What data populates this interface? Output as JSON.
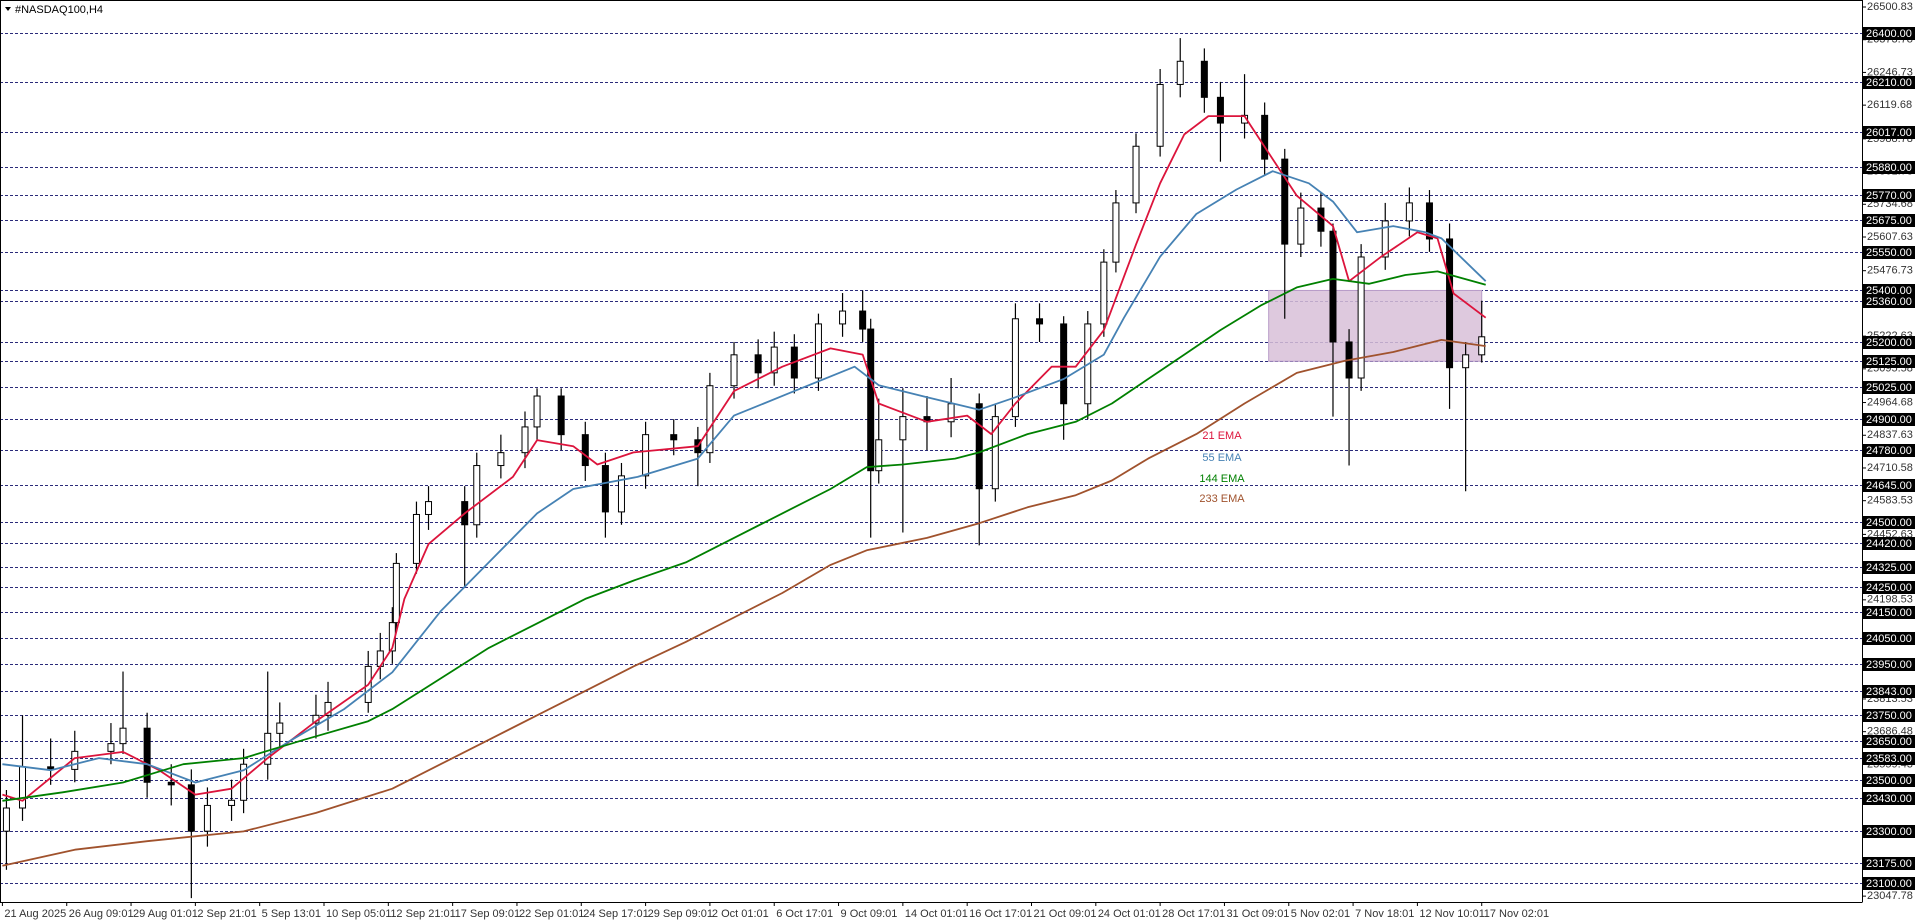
{
  "chart_data": {
    "type": "candlestick",
    "title": "#NASDAQ100,H4",
    "xlim": [
      -0.6,
      462.6
    ],
    "ylim": [
      23025,
      26528
    ],
    "xticks": [
      {
        "value": 0,
        "label": "21 Aug 2025"
      },
      {
        "value": 16,
        "label": "26 Aug 09:01"
      },
      {
        "value": 32,
        "label": "29 Aug 01:01"
      },
      {
        "value": 48,
        "label": "2 Sep 21:01"
      },
      {
        "value": 64,
        "label": "5 Sep 13:01"
      },
      {
        "value": 80,
        "label": "10 Sep 05:01"
      },
      {
        "value": 96,
        "label": "12 Sep 21:01"
      },
      {
        "value": 112,
        "label": "17 Sep 09:01"
      },
      {
        "value": 128,
        "label": "22 Sep 01:01"
      },
      {
        "value": 144,
        "label": "24 Sep 17:01"
      },
      {
        "value": 160,
        "label": "29 Sep 09:01"
      },
      {
        "value": 176,
        "label": "2 Oct 01:01"
      },
      {
        "value": 192,
        "label": "6 Oct 17:01"
      },
      {
        "value": 208,
        "label": "9 Oct 09:01"
      },
      {
        "value": 224,
        "label": "14 Oct 01:01"
      },
      {
        "value": 240,
        "label": "16 Oct 17:01"
      },
      {
        "value": 256,
        "label": "21 Oct 09:01"
      },
      {
        "value": 272,
        "label": "24 Oct 01:01"
      },
      {
        "value": 288,
        "label": "28 Oct 17:01"
      },
      {
        "value": 304,
        "label": "31 Oct 09:01"
      },
      {
        "value": 320,
        "label": "5 Nov 02:01"
      },
      {
        "value": 336,
        "label": "7 Nov 18:01"
      },
      {
        "value": 352,
        "label": "12 Nov 10:01"
      },
      {
        "value": 368,
        "label": "17 Nov 02:01"
      }
    ],
    "yticks": [
      26500.83,
      26373.78,
      26246.73,
      26119.68,
      25988.78,
      25861.73,
      25734.68,
      25607.63,
      25476.73,
      25222.63,
      25095.58,
      24964.68,
      24837.63,
      24710.58,
      24583.53,
      24452.63,
      24198.53,
      23813.53,
      23686.48,
      23559.43,
      23047.78
    ],
    "levels": [
      {
        "value": 26400,
        "label": "26400.00"
      },
      {
        "value": 26210,
        "label": "26210.00"
      },
      {
        "value": 26017,
        "label": "26017.00"
      },
      {
        "value": 25880,
        "label": "25880.00"
      },
      {
        "value": 25770,
        "label": "25770.00"
      },
      {
        "value": 25675,
        "label": "25675.00"
      },
      {
        "value": 25550,
        "label": "25550.00"
      },
      {
        "value": 25400,
        "label": "25400.00"
      },
      {
        "value": 25360,
        "label": "25360.00"
      },
      {
        "value": 25200,
        "label": "25200.00"
      },
      {
        "value": 25125,
        "label": "25125.00"
      },
      {
        "value": 25025,
        "label": "25025.00"
      },
      {
        "value": 24900,
        "label": "24900.00"
      },
      {
        "value": 24780,
        "label": "24780.00"
      },
      {
        "value": 24645,
        "label": "24645.00"
      },
      {
        "value": 24500,
        "label": "24500.00"
      },
      {
        "value": 24420,
        "label": "24420.00"
      },
      {
        "value": 24325,
        "label": "24325.00"
      },
      {
        "value": 24250,
        "label": "24250.00"
      },
      {
        "value": 24150,
        "label": "24150.00"
      },
      {
        "value": 24050,
        "label": "24050.00"
      },
      {
        "value": 23950,
        "label": "23950.00"
      },
      {
        "value": 23843,
        "label": "23843.00"
      },
      {
        "value": 23750,
        "label": "23750.00"
      },
      {
        "value": 23650,
        "label": "23650.00"
      },
      {
        "value": 23583,
        "label": "23583.00"
      },
      {
        "value": 23500,
        "label": "23500.00"
      },
      {
        "value": 23430,
        "label": "23430.00"
      },
      {
        "value": 23300,
        "label": "23300.00"
      },
      {
        "value": 23175,
        "label": "23175.00"
      },
      {
        "value": 23100,
        "label": "23100.00"
      }
    ],
    "level_color": "#2b2b7a",
    "zone": {
      "x": [
        315,
        368
      ],
      "y": [
        25125,
        25400
      ],
      "color": "#d8bfd8"
    },
    "candle_color": "#000000",
    "x": [
      1,
      5,
      12,
      18,
      27,
      30,
      36,
      42,
      47,
      51,
      57,
      60,
      66,
      69,
      78,
      81,
      91,
      94,
      97,
      98,
      103,
      106,
      115,
      118,
      124,
      130,
      133,
      139,
      145,
      150,
      154,
      160,
      167,
      173,
      176,
      182,
      188,
      192,
      197,
      203,
      209,
      214,
      216,
      218,
      224,
      230,
      236,
      243,
      247,
      252,
      258,
      264,
      270,
      274,
      277,
      282,
      288,
      293,
      299,
      303,
      309,
      314,
      319,
      323,
      328,
      331,
      335,
      338,
      344,
      350,
      355,
      360,
      364,
      368
    ],
    "open": [
      23300,
      23390,
      23550,
      23540,
      23610,
      23640,
      23700,
      23490,
      23480,
      23300,
      23400,
      23420,
      23560,
      23680,
      23720,
      23750,
      23800,
      23940,
      24000,
      24110,
      24340,
      24530,
      24580,
      24490,
      24720,
      24770,
      24870,
      24990,
      24840,
      24720,
      24540,
      24680,
      24840,
      24820,
      24770,
      25030,
      25150,
      25080,
      25180,
      25060,
      25270,
      25320,
      25250,
      24700,
      24820,
      24910,
      24890,
      24960,
      24630,
      24910,
      25290,
      25270,
      24960,
      25270,
      25510,
      25740,
      25960,
      26200,
      26290,
      26150,
      26050,
      26080,
      25910,
      25580,
      25720,
      25630,
      25200,
      25060,
      25530,
      25670,
      25740,
      25600,
      25100,
      25150
    ],
    "high": [
      23460,
      23750,
      23660,
      23690,
      23720,
      23920,
      23760,
      23560,
      23540,
      23470,
      23500,
      23620,
      23920,
      23800,
      23830,
      23880,
      24000,
      24070,
      24170,
      24380,
      24580,
      24640,
      24640,
      24770,
      24840,
      24930,
      25020,
      25020,
      24890,
      24770,
      24730,
      24890,
      24900,
      24870,
      25080,
      25200,
      25210,
      25240,
      25230,
      25310,
      25390,
      25400,
      25290,
      24980,
      25020,
      24990,
      25060,
      25000,
      24960,
      25350,
      25350,
      25300,
      25320,
      25560,
      25790,
      26010,
      26260,
      26380,
      26340,
      26210,
      26240,
      26130,
      25950,
      25780,
      25780,
      25660,
      25250,
      25580,
      25740,
      25800,
      25790,
      25660,
      25200,
      25360
    ],
    "low": [
      23150,
      23340,
      23480,
      23490,
      23560,
      23600,
      23430,
      23400,
      23040,
      23240,
      23340,
      23370,
      23500,
      23620,
      23660,
      23690,
      23760,
      23890,
      23950,
      24080,
      24300,
      24470,
      24250,
      24440,
      24670,
      24710,
      24820,
      24780,
      24660,
      24440,
      24490,
      24630,
      24760,
      24640,
      24730,
      24980,
      25020,
      25030,
      25000,
      25010,
      25220,
      25200,
      24440,
      24650,
      24460,
      24780,
      24830,
      24410,
      24580,
      24870,
      25200,
      24820,
      24900,
      25220,
      25470,
      25700,
      25920,
      26150,
      26090,
      25900,
      25990,
      25850,
      25290,
      25530,
      25570,
      24910,
      24720,
      25010,
      25480,
      25610,
      25550,
      24940,
      24620,
      25120
    ],
    "close": [
      23390,
      23550,
      23540,
      23610,
      23640,
      23700,
      23490,
      23480,
      23300,
      23400,
      23420,
      23560,
      23680,
      23720,
      23750,
      23800,
      23940,
      24000,
      24110,
      24340,
      24530,
      24580,
      24490,
      24720,
      24770,
      24870,
      24990,
      24840,
      24720,
      24540,
      24680,
      24840,
      24820,
      24770,
      25030,
      25150,
      25080,
      25180,
      25060,
      25270,
      25320,
      25250,
      24700,
      24820,
      24910,
      24890,
      24960,
      24630,
      24910,
      25290,
      25270,
      24960,
      25270,
      25510,
      25740,
      25960,
      26200,
      26290,
      26150,
      26050,
      26080,
      25910,
      25580,
      25720,
      25630,
      25200,
      25060,
      25530,
      25670,
      25740,
      25600,
      25100,
      25150,
      25220
    ],
    "series": [
      {
        "name": "21 EMA",
        "color": "#dc143c",
        "x": [
          0,
          5,
          18,
          30,
          39,
          48,
          57,
          66,
          78,
          91,
          97,
          100,
          106,
          115,
          127,
          133,
          142,
          148,
          157,
          173,
          182,
          194,
          206,
          214,
          218,
          230,
          240,
          246,
          252,
          261,
          267,
          274,
          282,
          288,
          294,
          300,
          309,
          314,
          322,
          331,
          335,
          343,
          352,
          357,
          361,
          369
        ],
        "values": [
          23442,
          23418,
          23584,
          23608,
          23537,
          23442,
          23465,
          23584,
          23727,
          23869,
          24012,
          24202,
          24415,
          24534,
          24676,
          24819,
          24795,
          24724,
          24771,
          24795,
          25009,
          25104,
          25175,
          25151,
          24961,
          24890,
          24914,
          24842,
          24961,
          25104,
          25104,
          25246,
          25578,
          25816,
          26006,
          26077,
          26077,
          25958,
          25768,
          25650,
          25436,
          25531,
          25626,
          25602,
          25388,
          25294
        ]
      },
      {
        "name": "55 EMA",
        "color": "#4682b4",
        "x": [
          0,
          12,
          24,
          36,
          48,
          60,
          72,
          85,
          97,
          109,
          121,
          133,
          142,
          158,
          173,
          182,
          197,
          212,
          218,
          230,
          243,
          252,
          264,
          274,
          279,
          288,
          297,
          307,
          316,
          325,
          331,
          337,
          346,
          354,
          358,
          369
        ],
        "values": [
          23560,
          23537,
          23584,
          23560,
          23489,
          23537,
          23655,
          23774,
          23917,
          24154,
          24344,
          24534,
          24629,
          24676,
          24747,
          24914,
          25009,
          25104,
          25032,
          24985,
          24937,
          24985,
          25056,
          25151,
          25294,
          25531,
          25697,
          25792,
          25863,
          25816,
          25745,
          25626,
          25650,
          25626,
          25602,
          25436
        ]
      },
      {
        "name": "144 EMA",
        "color": "#008000",
        "x": [
          0,
          15,
          30,
          45,
          60,
          75,
          91,
          97,
          109,
          121,
          133,
          145,
          157,
          170,
          182,
          194,
          206,
          215,
          224,
          237,
          243,
          255,
          267,
          276,
          285,
          294,
          303,
          313,
          322,
          331,
          340,
          349,
          357,
          369
        ],
        "values": [
          23418,
          23451,
          23489,
          23560,
          23584,
          23655,
          23727,
          23774,
          23893,
          24012,
          24107,
          24202,
          24273,
          24344,
          24439,
          24534,
          24629,
          24714,
          24724,
          24747,
          24771,
          24842,
          24890,
          24961,
          25056,
          25151,
          25246,
          25341,
          25412,
          25445,
          25426,
          25460,
          25474,
          25422
        ]
      },
      {
        "name": "233 EMA",
        "color": "#a0522d",
        "x": [
          0,
          18,
          36,
          60,
          78,
          97,
          109,
          121,
          133,
          145,
          157,
          170,
          182,
          194,
          206,
          215,
          230,
          243,
          255,
          267,
          276,
          285,
          297,
          309,
          322,
          334,
          346,
          358,
          369
        ],
        "values": [
          23166,
          23228,
          23261,
          23299,
          23371,
          23465,
          23560,
          23655,
          23750,
          23845,
          23940,
          24035,
          24130,
          24225,
          24334,
          24391,
          24439,
          24496,
          24558,
          24605,
          24662,
          24747,
          24842,
          24961,
          25080,
          25127,
          25161,
          25208,
          25184
        ]
      }
    ]
  }
}
